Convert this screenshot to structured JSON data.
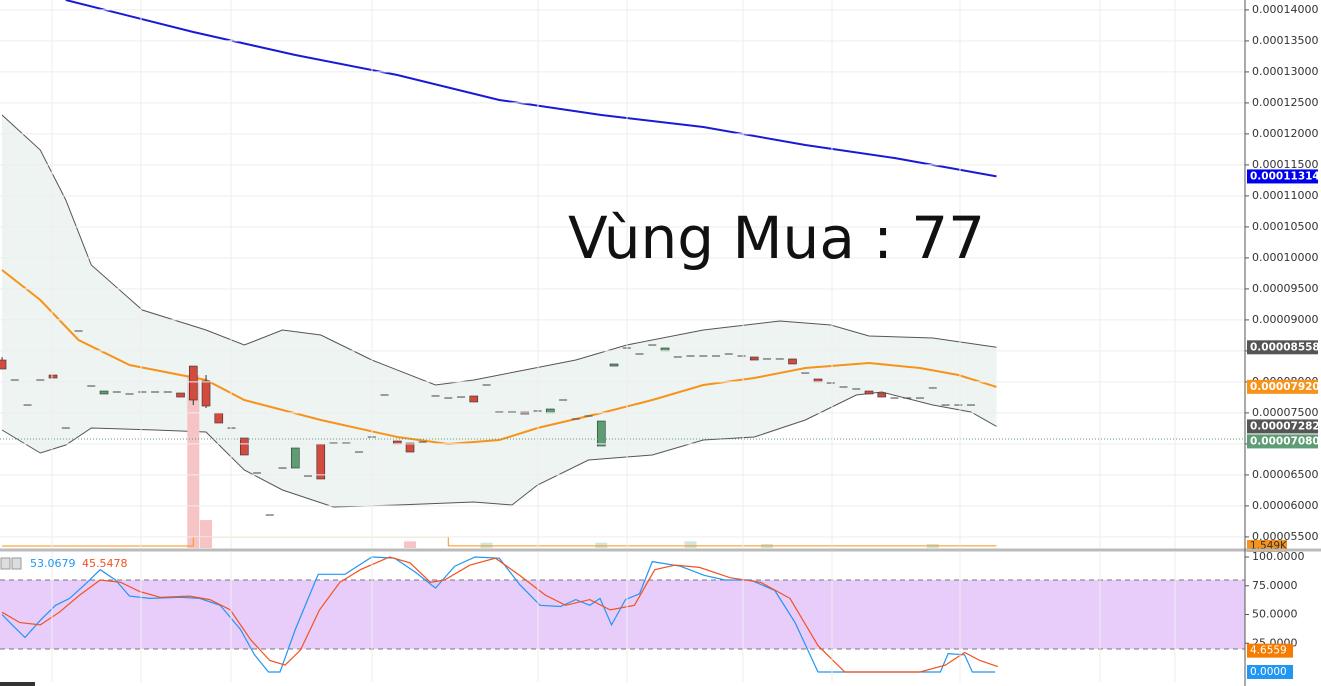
{
  "chart_data": [
    {
      "type": "candlestick",
      "annotation": "Vùng Mua : 77",
      "xlim": [
        -0.16,
        97.49
      ],
      "ylim": [
        5.321e-05,
        0.0001416
      ],
      "up_color": "#5c9e74",
      "down_color": "#d24b3e",
      "doji_color": "#444444",
      "yticks": [
        {
          "value": 0.00014,
          "label": "0.00014000"
        },
        {
          "value": 0.000135,
          "label": "0.00013500"
        },
        {
          "value": 0.00013,
          "label": "0.00013000"
        },
        {
          "value": 0.000125,
          "label": "0.00012500"
        },
        {
          "value": 0.00012,
          "label": "0.00012000"
        },
        {
          "value": 0.000115,
          "label": "0.00011500"
        },
        {
          "value": 0.00011,
          "label": "0.00011000"
        },
        {
          "value": 0.000105,
          "label": "0.00010500"
        },
        {
          "value": 0.0001,
          "label": "0.00010000"
        },
        {
          "value": 9.5e-05,
          "label": "0.00009500"
        },
        {
          "value": 9e-05,
          "label": "0.00009000"
        },
        {
          "value": 8.5e-05,
          "label": "0.00008500"
        },
        {
          "value": 8e-05,
          "label": "0.00008000"
        },
        {
          "value": 7.5e-05,
          "label": "0.00007500"
        },
        {
          "value": 7e-05,
          "label": "0.00007000"
        },
        {
          "value": 6.5e-05,
          "label": "0.00006500"
        },
        {
          "value": 6e-05,
          "label": "0.00006000"
        },
        {
          "value": 5.5e-05,
          "label": "0.00005500"
        }
      ],
      "grid": true,
      "open": [
        8.353e-05,
        8.031e-05,
        7.627e-05,
        8.031e-05,
        8.111e-05,
        7.256e-05,
        8.821e-05,
        7.934e-05,
        7.805e-05,
        7.837e-05,
        7.805e-05,
        7.837e-05,
        7.837e-05,
        7.837e-05,
        7.821e-05,
        8.256e-05,
        8.015e-05,
        7.498e-05,
        7.256e-05,
        7.095e-05,
        6.531e-05,
        5.853e-05,
        6.611e-05,
        6.611e-05,
        6.482e-05,
        6.998e-05,
        7.014e-05,
        7.014e-05,
        6.869e-05,
        7.111e-05,
        7.789e-05,
        7.047e-05,
        7.014e-05,
        7.031e-05,
        7.773e-05,
        7.74e-05,
        7.756e-05,
        7.773e-05,
        7.95e-05,
        7.514e-05,
        7.514e-05,
        7.514e-05,
        7.531e-05,
        7.498e-05,
        7.708e-05,
        7.402e-05,
        7.45e-05,
        6.966e-05,
        8.256e-05,
        8.547e-05,
        8.45e-05,
        8.595e-05,
        8.498e-05,
        8.402e-05,
        8.418e-05,
        8.418e-05,
        8.418e-05,
        8.45e-05,
        8.418e-05,
        8.402e-05,
        8.37e-05,
        8.37e-05,
        8.37e-05,
        8.143e-05,
        8.047e-05,
        7.982e-05,
        7.918e-05,
        7.886e-05,
        7.853e-05,
        7.821e-05,
        7.74e-05,
        7.74e-05,
        7.74e-05,
        7.902e-05,
        7.627e-05,
        7.627e-05,
        7.627e-05
      ],
      "high": [
        8.4e-05,
        8.031e-05,
        7.627e-05,
        8.031e-05,
        8.111e-05,
        7.256e-05,
        8.821e-05,
        7.934e-05,
        7.853e-05,
        7.837e-05,
        7.805e-05,
        7.837e-05,
        7.837e-05,
        7.837e-05,
        7.821e-05,
        8.256e-05,
        8.111e-05,
        7.498e-05,
        7.256e-05,
        7.095e-05,
        6.531e-05,
        5.853e-05,
        6.611e-05,
        6.934e-05,
        6.482e-05,
        6.998e-05,
        7.014e-05,
        7.014e-05,
        6.869e-05,
        7.111e-05,
        7.789e-05,
        7.047e-05,
        7.014e-05,
        7.031e-05,
        7.773e-05,
        7.74e-05,
        7.756e-05,
        7.773e-05,
        7.95e-05,
        7.514e-05,
        7.514e-05,
        7.514e-05,
        7.531e-05,
        7.563e-05,
        7.708e-05,
        7.402e-05,
        7.45e-05,
        7.369e-05,
        8.289e-05,
        8.547e-05,
        8.45e-05,
        8.595e-05,
        8.547e-05,
        8.402e-05,
        8.418e-05,
        8.418e-05,
        8.418e-05,
        8.45e-05,
        8.418e-05,
        8.402e-05,
        8.37e-05,
        8.37e-05,
        8.37e-05,
        8.143e-05,
        8.047e-05,
        7.982e-05,
        7.918e-05,
        7.886e-05,
        7.853e-05,
        7.821e-05,
        7.74e-05,
        7.74e-05,
        7.74e-05,
        7.902e-05,
        7.627e-05,
        7.627e-05,
        7.627e-05
      ],
      "low": [
        8.208e-05,
        8.031e-05,
        7.627e-05,
        8.031e-05,
        8.063e-05,
        7.256e-05,
        8.821e-05,
        7.934e-05,
        7.805e-05,
        7.837e-05,
        7.805e-05,
        7.837e-05,
        7.837e-05,
        7.837e-05,
        7.756e-05,
        7.627e-05,
        7.579e-05,
        7.337e-05,
        7.256e-05,
        6.821e-05,
        6.531e-05,
        5.853e-05,
        6.611e-05,
        6.611e-05,
        6.482e-05,
        6.434e-05,
        7.014e-05,
        7.014e-05,
        6.869e-05,
        7.111e-05,
        7.789e-05,
        6.998e-05,
        6.869e-05,
        7.031e-05,
        7.773e-05,
        7.74e-05,
        7.756e-05,
        7.676e-05,
        7.95e-05,
        7.514e-05,
        7.514e-05,
        7.482e-05,
        7.531e-05,
        7.498e-05,
        7.708e-05,
        7.402e-05,
        7.45e-05,
        6.966e-05,
        8.256e-05,
        8.547e-05,
        8.45e-05,
        8.595e-05,
        8.498e-05,
        8.402e-05,
        8.418e-05,
        8.418e-05,
        8.418e-05,
        8.45e-05,
        8.418e-05,
        8.353e-05,
        8.37e-05,
        8.37e-05,
        8.289e-05,
        8.143e-05,
        7.998e-05,
        7.982e-05,
        7.918e-05,
        7.886e-05,
        7.805e-05,
        7.756e-05,
        7.74e-05,
        7.74e-05,
        7.74e-05,
        7.902e-05,
        7.627e-05,
        7.627e-05,
        7.627e-05
      ],
      "close": [
        8.208e-05,
        8.031e-05,
        7.627e-05,
        8.031e-05,
        8.063e-05,
        7.256e-05,
        8.821e-05,
        7.934e-05,
        7.853e-05,
        7.837e-05,
        7.805e-05,
        7.837e-05,
        7.837e-05,
        7.837e-05,
        7.756e-05,
        7.708e-05,
        7.611e-05,
        7.337e-05,
        7.256e-05,
        6.821e-05,
        6.531e-05,
        5.853e-05,
        6.611e-05,
        6.934e-05,
        6.482e-05,
        6.434e-05,
        7.014e-05,
        7.014e-05,
        6.869e-05,
        7.111e-05,
        7.789e-05,
        6.998e-05,
        6.869e-05,
        7.031e-05,
        7.773e-05,
        7.74e-05,
        7.756e-05,
        7.676e-05,
        7.95e-05,
        7.514e-05,
        7.514e-05,
        7.482e-05,
        7.531e-05,
        7.563e-05,
        7.708e-05,
        7.402e-05,
        7.45e-05,
        7.369e-05,
        8.289e-05,
        8.547e-05,
        8.45e-05,
        8.595e-05,
        8.547e-05,
        8.402e-05,
        8.418e-05,
        8.418e-05,
        8.418e-05,
        8.45e-05,
        8.418e-05,
        8.353e-05,
        8.37e-05,
        8.37e-05,
        8.289e-05,
        8.143e-05,
        7.998e-05,
        7.982e-05,
        7.918e-05,
        7.886e-05,
        7.805e-05,
        7.756e-05,
        7.74e-05,
        7.74e-05,
        7.74e-05,
        7.902e-05,
        7.627e-05,
        7.627e-05,
        7.627e-05
      ],
      "moving_averages": [
        {
          "color": "#1a1ad6",
          "width": 2,
          "x": [
            5,
            15,
            23,
            31,
            39,
            47,
            55,
            63,
            70,
            78
          ],
          "values": [
            0.0001416,
            0.00013644,
            0.00013273,
            0.0001295,
            0.00012547,
            0.00012305,
            0.00012112,
            0.00011821,
            0.00011612,
            0.00011314
          ]
        },
        {
          "color": "#f7931a",
          "width": 2,
          "x": [
            0,
            3,
            6,
            10,
            16,
            19,
            25,
            31,
            35,
            39,
            42,
            47,
            51,
            55,
            59,
            63,
            68,
            72,
            75,
            78
          ],
          "values": [
            9.805e-05,
            9.321e-05,
            8.676e-05,
            8.272e-05,
            8.031e-05,
            7.708e-05,
            7.385e-05,
            7.111e-05,
            6.998e-05,
            7.063e-05,
            7.256e-05,
            7.498e-05,
            7.708e-05,
            7.95e-05,
            8.063e-05,
            8.224e-05,
            8.305e-05,
            8.224e-05,
            8.111e-05,
            7.92e-05
          ]
        }
      ],
      "bollinger": {
        "fill": "#edf4f2",
        "color": "#555555",
        "upper": {
          "x": [
            0,
            3,
            5,
            7,
            11,
            16,
            19,
            22,
            25,
            29,
            34,
            37,
            41,
            45,
            49,
            55,
            61,
            65,
            68,
            73,
            78
          ],
          "values": [
            0.00012305,
            0.00011741,
            0.00010934,
            9.886e-05,
            9.16e-05,
            8.837e-05,
            8.595e-05,
            8.837e-05,
            8.756e-05,
            8.353e-05,
            7.95e-05,
            8.031e-05,
            8.192e-05,
            8.353e-05,
            8.595e-05,
            8.837e-05,
            8.982e-05,
            8.918e-05,
            8.74e-05,
            8.708e-05,
            8.558e-05
          ]
        },
        "lower": {
          "x": [
            0,
            3,
            5,
            7,
            12,
            16,
            19,
            22,
            26,
            31,
            37,
            40,
            42,
            46,
            51,
            55,
            59,
            63,
            67,
            69,
            73,
            76,
            78
          ],
          "values": [
            7.224e-05,
            6.853e-05,
            6.982e-05,
            7.256e-05,
            7.224e-05,
            7.192e-05,
            6.579e-05,
            6.256e-05,
            5.982e-05,
            6.014e-05,
            6.063e-05,
            6.014e-05,
            6.337e-05,
            6.74e-05,
            6.821e-05,
            7.063e-05,
            7.111e-05,
            7.385e-05,
            7.789e-05,
            7.837e-05,
            7.627e-05,
            7.514e-05,
            7.282e-05
          ]
        }
      },
      "volume_ylim": [
        0,
        412
      ],
      "volume": {
        "x": [
          15,
          16,
          32,
          38,
          47,
          54,
          60,
          73
        ],
        "values": [
          130,
          21,
          5,
          4,
          4,
          5,
          3,
          3
        ],
        "colors": [
          "#f6c4c4",
          "#f6c4c4",
          "#f6c4c4",
          "#cfe6d8",
          "#cfe6d8",
          "#cfe6d8",
          "#cfe6d8",
          "#cfe6d8"
        ]
      },
      "volume_ma": {
        "color": "#f7931a",
        "x": [
          0,
          15,
          15,
          35,
          35,
          78
        ],
        "values": [
          1.5,
          1.5,
          8.3,
          8.3,
          1.549,
          1.549
        ]
      },
      "price_labels": [
        {
          "value": 0.00011314,
          "label": "0.00011314",
          "color": "#0000ee"
        },
        {
          "value": 8.558e-05,
          "label": "0.00008558",
          "color": "#555555"
        },
        {
          "value": 7.92e-05,
          "label": "0.00007920",
          "color": "#f7931a"
        },
        {
          "value": 7.282e-05,
          "label": "0.00007282",
          "color": "#555555"
        },
        {
          "value": 7.08e-05,
          "label": "0.00007080",
          "color": "#5e9c76",
          "dotted": true
        }
      ],
      "volume_label": {
        "value": 1.549,
        "label": "1.549K",
        "color": "#f7931a"
      }
    },
    {
      "type": "stochastic",
      "xlim": [
        -0.16,
        97.49
      ],
      "ylim": [
        -12.17,
        104.35
      ],
      "yticks": [
        {
          "value": 100,
          "label": "100.0000"
        },
        {
          "value": 75,
          "label": "75.0000"
        },
        {
          "value": 50,
          "label": "50.0000"
        },
        {
          "value": 25,
          "label": "25.0000"
        }
      ],
      "band": [
        20,
        80
      ],
      "band_color": "#e8cdfb",
      "legend_values": [
        53.0679,
        45.5478
      ],
      "series": [
        {
          "color": "#2196f3",
          "x": [
            0,
            0.8,
            1.8,
            3,
            4.2,
            5.3,
            6.5,
            7.7,
            8.9,
            10,
            11.6,
            14,
            15.5,
            17.1,
            18.7,
            19.8,
            20.9,
            21.8,
            23,
            24.8,
            26.9,
            29,
            30.8,
            32.4,
            34,
            35.5,
            37.1,
            39,
            40.6,
            42.2,
            43.8,
            45,
            46.1,
            46.9,
            47.8,
            48.9,
            50,
            51,
            53.2,
            55.1,
            56.7,
            58.7,
            60.6,
            62.2,
            64,
            65.3,
            73.6,
            74.2,
            75.5,
            76.1,
            77.9
          ],
          "values": [
            50,
            41,
            30,
            45,
            58,
            64,
            76,
            89,
            80,
            66,
            64,
            65,
            64,
            58,
            37,
            15,
            0,
            0,
            37,
            85,
            85,
            100,
            99,
            87,
            73,
            92,
            100,
            99,
            76,
            58,
            57,
            63,
            58,
            64,
            41,
            63,
            68,
            96,
            92,
            84,
            80,
            80,
            71,
            43,
            0,
            0,
            0,
            16,
            15,
            0,
            0
          ]
        },
        {
          "color": "#f4511e",
          "x": [
            0,
            1.4,
            3,
            4.5,
            6.1,
            7.7,
            9.3,
            10.8,
            12.4,
            14.7,
            16.3,
            17.9,
            19.5,
            21,
            22.2,
            23.4,
            24.9,
            26.5,
            28.1,
            30.4,
            32,
            33.6,
            34.7,
            36.7,
            38.7,
            40.6,
            42.6,
            44.2,
            46.1,
            47.7,
            49.6,
            51.2,
            52.8,
            54.7,
            57.1,
            59.5,
            61.8,
            64,
            66.1,
            72,
            74,
            75.5,
            76.7,
            78.1
          ],
          "values": [
            52,
            43,
            41,
            52,
            67,
            80,
            78,
            70,
            65,
            66,
            63,
            54,
            28,
            10,
            6,
            19,
            54,
            78,
            89,
            100,
            95,
            78,
            80,
            93,
            99,
            84,
            67,
            58,
            63,
            54,
            58,
            89,
            93,
            91,
            82,
            78,
            64,
            23,
            0,
            0,
            6,
            17,
            10,
            4.6559
          ]
        }
      ],
      "axis_labels": [
        {
          "value": 4.6559,
          "color": "#f57c00"
        },
        {
          "value": 0,
          "label": "0.0000",
          "color": "#2196f3"
        }
      ]
    }
  ]
}
